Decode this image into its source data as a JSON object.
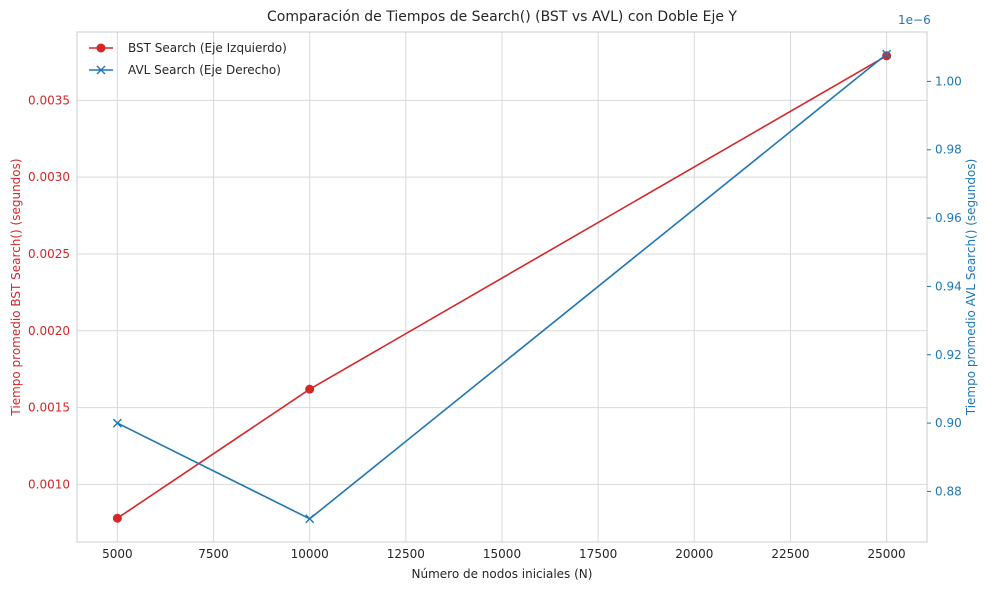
{
  "chart_data": {
    "type": "line",
    "title": "Comparación de Tiempos de Search() (BST vs AVL) con Doble Eje Y",
    "xlabel": "Número de nodos iniciales (N)",
    "ylabel_left": "Tiempo promedio BST Search() (segundos)",
    "ylabel_right": "Tiempo promedio AVL Search() (segundos)",
    "right_axis_offset_label": "1e−6",
    "x": [
      5000,
      10000,
      25000
    ],
    "xlim": [
      3950,
      26050
    ],
    "x_ticks": [
      5000,
      7500,
      10000,
      12500,
      15000,
      17500,
      20000,
      22500,
      25000
    ],
    "x_tick_labels": [
      "5000",
      "7500",
      "10000",
      "12500",
      "15000",
      "17500",
      "20000",
      "22500",
      "25000"
    ],
    "left_ylim": [
      0.000625,
      0.003945
    ],
    "left_ticks": [
      0.001,
      0.0015,
      0.002,
      0.0025,
      0.003,
      0.0035
    ],
    "left_tick_labels": [
      "0.0010",
      "0.0015",
      "0.0020",
      "0.0025",
      "0.0030",
      "0.0035"
    ],
    "right_ylim": [
      8.652e-07,
      1.01446e-06
    ],
    "right_ticks": [
      8.8e-07,
      9e-07,
      9.2e-07,
      9.4e-07,
      9.6e-07,
      9.8e-07,
      1e-06
    ],
    "right_tick_labels": [
      "0.88",
      "0.90",
      "0.92",
      "0.94",
      "0.96",
      "0.98",
      "1.00"
    ],
    "grid": true,
    "legend_position": "top-left",
    "series": [
      {
        "name": "BST Search (Eje Izquierdo)",
        "axis": "left",
        "color": "#d62728",
        "marker": "circle",
        "values": [
          0.00078,
          0.00162,
          0.00379
        ]
      },
      {
        "name": "AVL Search (Eje Derecho)",
        "axis": "right",
        "color": "#1f77b4",
        "marker": "x",
        "values": [
          9e-07,
          8.72e-07,
          1.008e-06
        ]
      }
    ]
  }
}
